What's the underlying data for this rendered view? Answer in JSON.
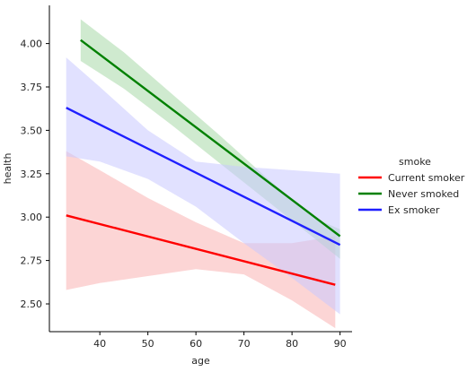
{
  "chart_data": {
    "type": "line",
    "xlabel": "age",
    "ylabel": "health",
    "xlim": [
      29.5,
      92.5
    ],
    "ylim": [
      2.34,
      4.22
    ],
    "xticks": [
      40,
      50,
      60,
      70,
      80,
      90
    ],
    "yticks": [
      2.5,
      2.75,
      3.0,
      3.25,
      3.5,
      3.75,
      4.0
    ],
    "ytick_labels": [
      "2.50",
      "2.75",
      "3.00",
      "3.25",
      "3.50",
      "3.75",
      "4.00"
    ],
    "grid": false,
    "legend": {
      "title": "smoke",
      "placement": "right",
      "entries": [
        "Current smoker",
        "Never smoked",
        "Ex smoker"
      ]
    },
    "series": [
      {
        "name": "Current smoker",
        "color": "#ff0000",
        "band_color": "#f9b3b3",
        "x": [
          33,
          89
        ],
        "y": [
          3.01,
          2.61
        ],
        "ci_x": [
          33,
          40,
          50,
          60,
          70,
          80,
          89
        ],
        "ci_lower": [
          2.58,
          2.62,
          2.66,
          2.7,
          2.67,
          2.52,
          2.36
        ],
        "ci_upper": [
          3.38,
          3.27,
          3.11,
          2.97,
          2.85,
          2.85,
          2.89
        ]
      },
      {
        "name": "Never smoked",
        "color": "#008000",
        "band_color": "#a8d8a8",
        "x": [
          36,
          90
        ],
        "y": [
          4.02,
          2.89
        ],
        "ci_x": [
          36,
          45,
          55,
          65,
          75,
          85,
          90
        ],
        "ci_lower": [
          3.9,
          3.74,
          3.53,
          3.31,
          3.09,
          2.87,
          2.76
        ],
        "ci_upper": [
          4.14,
          3.95,
          3.71,
          3.47,
          3.22,
          2.99,
          2.93
        ]
      },
      {
        "name": "Ex smoker",
        "color": "#1f1fff",
        "band_color": "#c8c8ff",
        "x": [
          33,
          90
        ],
        "y": [
          3.63,
          2.84
        ],
        "ci_x": [
          33,
          40,
          50,
          60,
          70,
          80,
          90
        ],
        "ci_lower": [
          3.35,
          3.32,
          3.22,
          3.06,
          2.85,
          2.65,
          2.44
        ],
        "ci_upper": [
          3.92,
          3.75,
          3.5,
          3.32,
          3.29,
          3.27,
          3.25
        ]
      }
    ]
  }
}
